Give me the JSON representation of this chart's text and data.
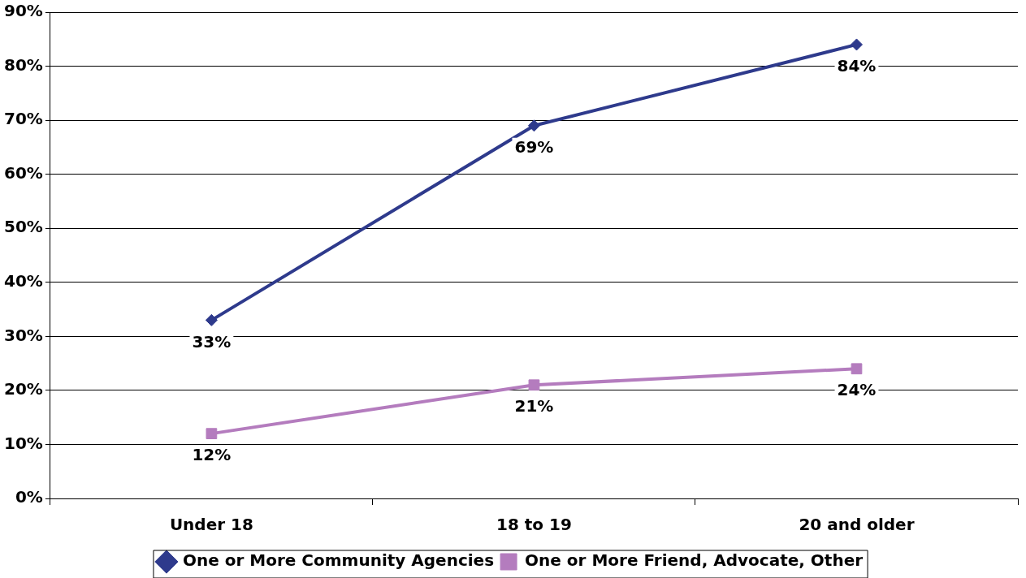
{
  "chart_data": {
    "type": "line",
    "categories": [
      "Under 18",
      "18 to 19",
      "20 and older"
    ],
    "series": [
      {
        "name": "One or More Community Agencies",
        "color": "#2e3a8c",
        "marker": "diamond",
        "values": [
          33,
          69,
          84
        ],
        "value_labels": [
          "33%",
          "69%",
          "84%"
        ]
      },
      {
        "name": "One or More Friend, Advocate, Other",
        "color": "#b47cbe",
        "marker": "square",
        "values": [
          12,
          21,
          24
        ],
        "value_labels": [
          "12%",
          "21%",
          "24%"
        ]
      }
    ],
    "ylim": [
      0,
      90
    ],
    "yticks": [
      {
        "value": 0,
        "label": "0%"
      },
      {
        "value": 10,
        "label": "10%"
      },
      {
        "value": 20,
        "label": "20%"
      },
      {
        "value": 30,
        "label": "30%"
      },
      {
        "value": 40,
        "label": "40%"
      },
      {
        "value": 50,
        "label": "50%"
      },
      {
        "value": 60,
        "label": "60%"
      },
      {
        "value": 70,
        "label": "70%"
      },
      {
        "value": 80,
        "label": "80%"
      },
      {
        "value": 90,
        "label": "90%"
      }
    ],
    "grid": "y",
    "legend": "bottom",
    "line_style": "solid"
  }
}
